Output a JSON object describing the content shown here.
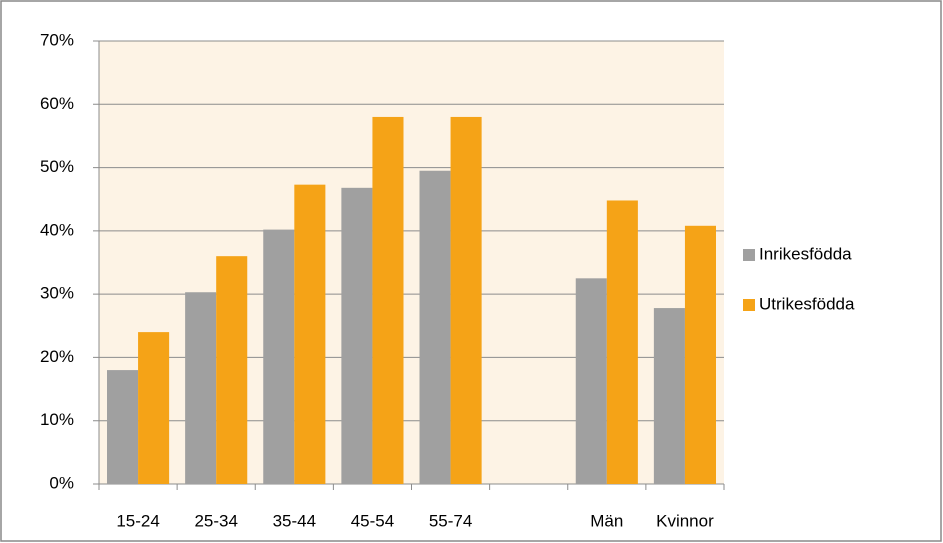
{
  "chart_data": {
    "type": "bar",
    "categories": [
      "15-24",
      "25-34",
      "35-44",
      "45-54",
      "55-74",
      null,
      "Män",
      "Kvinnor"
    ],
    "series": [
      {
        "name": "Inrikesfödda",
        "color": "#a0a0a0",
        "values": [
          18,
          30.3,
          40.2,
          46.8,
          49.5,
          null,
          32.5,
          27.8
        ]
      },
      {
        "name": "Utrikesfödda",
        "color": "#f5a317",
        "values": [
          24,
          36,
          47.3,
          58,
          58,
          null,
          44.8,
          40.8
        ]
      }
    ],
    "ylim": [
      0,
      70
    ],
    "yticks": [
      {
        "value": 0,
        "label": "0%"
      },
      {
        "value": 10,
        "label": "10%"
      },
      {
        "value": 20,
        "label": "20%"
      },
      {
        "value": 30,
        "label": "30%"
      },
      {
        "value": 40,
        "label": "40%"
      },
      {
        "value": 50,
        "label": "50%"
      },
      {
        "value": 60,
        "label": "60%"
      },
      {
        "value": 70,
        "label": "70%"
      }
    ],
    "grid": true,
    "legend": "right",
    "plot_background": "#fdf3e5"
  }
}
